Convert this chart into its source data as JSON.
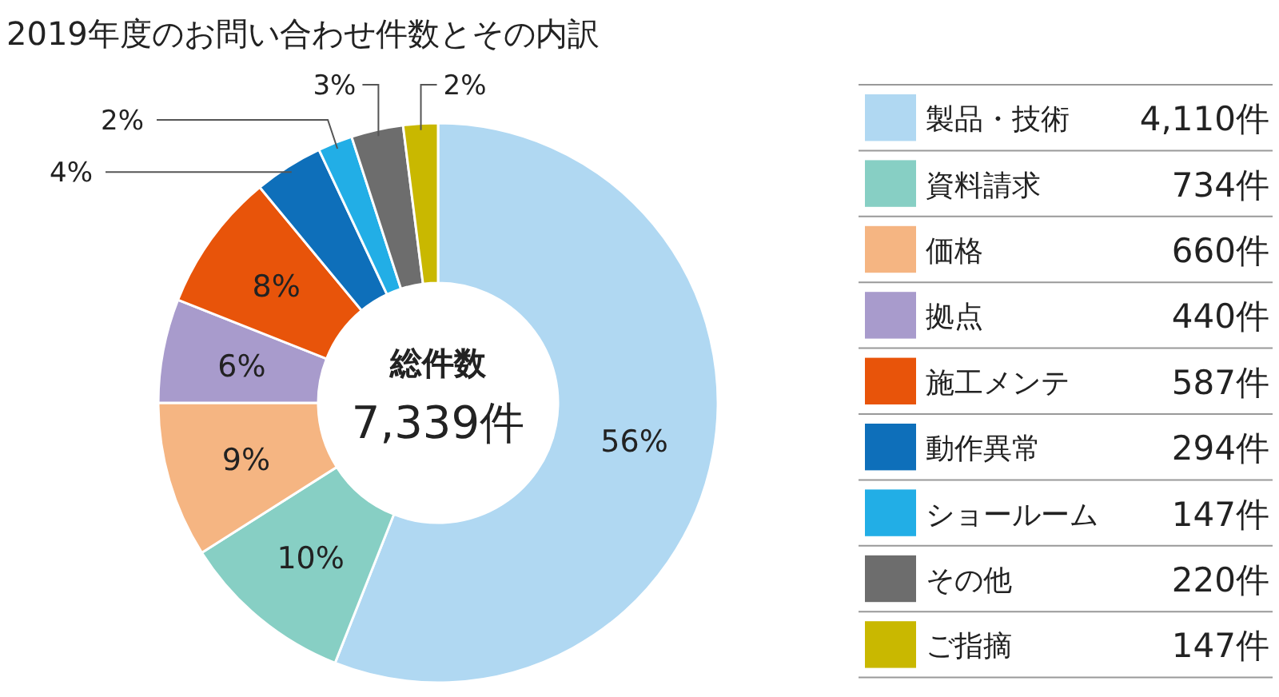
{
  "chart_data": {
    "type": "donut",
    "title": "2019年度のお問い合わせ件数とその内訳",
    "categories": [
      "製品・技術",
      "資料請求",
      "価格",
      "拠点",
      "施工メンテ",
      "動作異常",
      "ショールーム",
      "その他",
      "ご指摘"
    ],
    "values": [
      56,
      10,
      9,
      6,
      8,
      4,
      2,
      3,
      2
    ],
    "colors": [
      "#b0d8f2",
      "#87cfc4",
      "#f5b582",
      "#a89bcc",
      "#e8540a",
      "#0e6fba",
      "#22aee6",
      "#6d6d6d",
      "#c9b800"
    ],
    "value_labels": [
      "56%",
      "10%",
      "9%",
      "6%",
      "8%",
      "4%",
      "2%",
      "3%",
      "2%"
    ],
    "annotations": [
      "総件数",
      "7,339件",
      {
        "text": "4,110件",
        "x": "製品・技術"
      },
      {
        "text": "734件",
        "x": "資料請求"
      },
      {
        "text": "660件",
        "x": "価格"
      },
      {
        "text": "440件",
        "x": "拠点"
      },
      {
        "text": "587件",
        "x": "施工メンテ"
      },
      {
        "text": "294件",
        "x": "動作異常"
      },
      {
        "text": "147件",
        "x": "ショールーム"
      },
      {
        "text": "220件",
        "x": "その他"
      },
      {
        "text": "147件",
        "x": "ご指摘"
      }
    ],
    "legend": "right"
  }
}
